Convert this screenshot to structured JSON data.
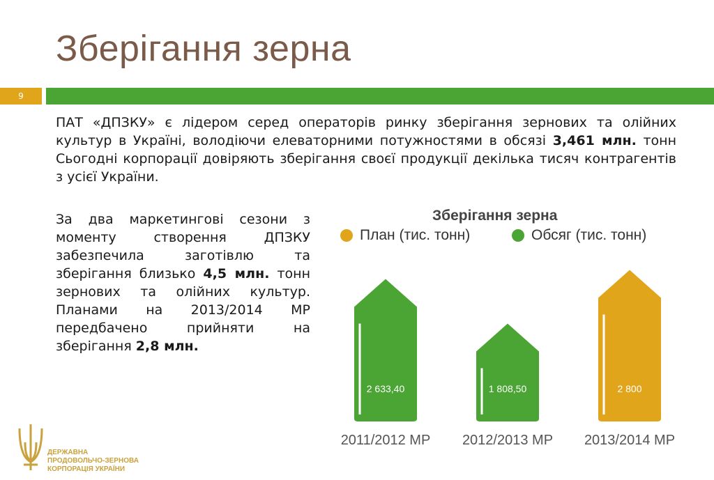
{
  "slide": {
    "title": "Зберігання зерна",
    "number": "9"
  },
  "intro": {
    "part1": "ПАТ «ДПЗКУ» є лідером серед операторів ринку зберігання зернових та олійних культур в Україні, володіючи елеваторними потужностями в обсязі ",
    "bold": "3,461 млн.",
    "part2": " тонн  Сьогодні корпорації довіряють зберігання своєї продукції  декілька тисяч контрагентів з усієї України."
  },
  "left_text": {
    "part1": "За два маркетингові сезони з моменту створення ДПЗКУ забезпечила заготівлю та зберігання близько ",
    "bold1": "4,5 млн.",
    "part2": " тонн зернових та олійних культур. Планами на 2013/2014 МР передбачено прийняти на зберігання  ",
    "bold2": "2,8 млн."
  },
  "logo": {
    "line1": "ДЕРЖАВНА",
    "line2": "ПРОДОВОЛЬЧО-ЗЕРНОВА",
    "line3": "КОРПОРАЦІЯ УКРАЇНИ"
  },
  "colors": {
    "plan": "#e0a51b",
    "volume": "#4aa534",
    "title": "#7a5a48"
  },
  "chart_data": {
    "type": "bar",
    "title": "Зберігання зерна",
    "legend": [
      "План (тис. тонн)",
      "Обсяг (тис. тонн)"
    ],
    "categories": [
      "2011/2012 МР",
      "2012/2013 МР",
      "2013/2014 МР"
    ],
    "values": [
      2633.4,
      1808.5,
      2800
    ],
    "value_labels": [
      "2 633,40",
      "1 808,50",
      "2 800"
    ],
    "series_type": [
      "Обсяг (тис. тонн)",
      "Обсяг (тис. тонн)",
      "План (тис. тонн)"
    ],
    "ylim": [
      0,
      3000
    ],
    "legend_position": "top"
  }
}
